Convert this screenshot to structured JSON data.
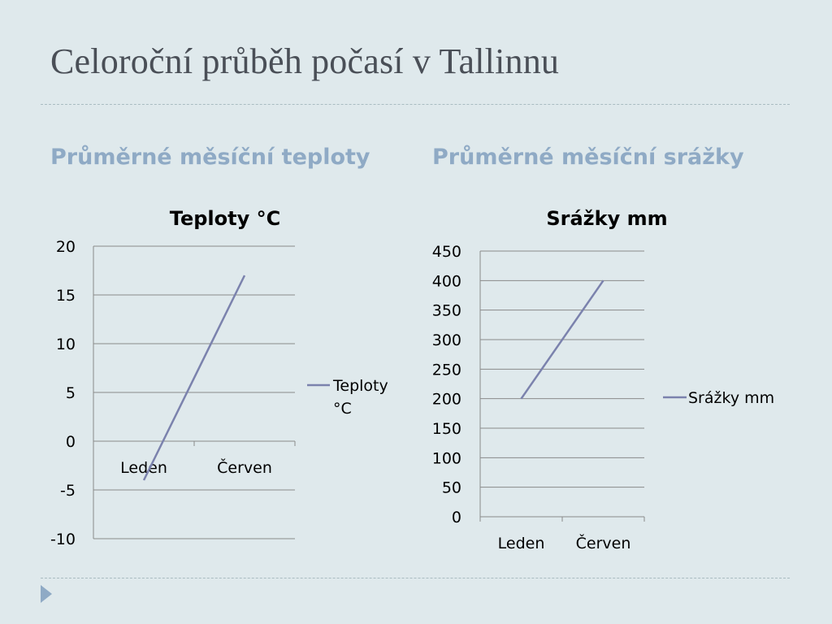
{
  "slide": {
    "title": "Celoroční průběh počasí v Tallinnu",
    "left_heading": "Průměrné měsíční teploty",
    "right_heading": "Průměrné měsíční srážky"
  },
  "colors": {
    "background": "#dfe9ec",
    "title": "#4a4f57",
    "heading": "#8faac5",
    "series_line": "#7b82ad",
    "gridline": "#8a8a8a"
  },
  "nav": {
    "icon": "play-triangle-icon"
  },
  "chart_data": [
    {
      "type": "line",
      "title": "Teploty °C",
      "categories": [
        "Leden",
        "Červen"
      ],
      "series": [
        {
          "name": "Teploty °C",
          "values": [
            -4,
            17
          ]
        }
      ],
      "ylim": [
        -10,
        20
      ],
      "yticks": [
        20,
        15,
        10,
        5,
        0,
        -5,
        -10
      ],
      "grid": true,
      "legend": "right",
      "xlabel": "",
      "ylabel": ""
    },
    {
      "type": "line",
      "title": "Srážky mm",
      "categories": [
        "Leden",
        "Červen"
      ],
      "series": [
        {
          "name": "Srážky mm",
          "values": [
            200,
            400
          ]
        }
      ],
      "ylim": [
        0,
        450
      ],
      "yticks": [
        450,
        400,
        350,
        300,
        250,
        200,
        150,
        100,
        50,
        0
      ],
      "grid": true,
      "legend": "right",
      "xlabel": "",
      "ylabel": ""
    }
  ]
}
